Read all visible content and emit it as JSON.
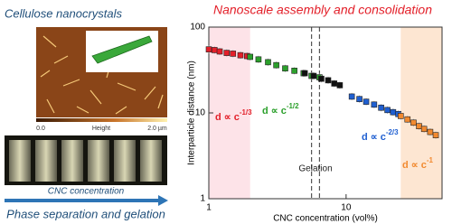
{
  "chart_data": {
    "type": "scatter",
    "title": "Nanoscale assembly and consolidation",
    "title_color": "#e3202a",
    "x_label": "CNC concentration (vol%)",
    "y_label": "Interparticle distance (nm)",
    "xscale": "log",
    "yscale": "log",
    "xlim": [
      1,
      50
    ],
    "ylim": [
      1,
      100
    ],
    "xticks": [
      1,
      10
    ],
    "yticks": [
      1,
      10,
      100
    ],
    "shaded_regions": [
      {
        "range": [
          1,
          2
        ],
        "color": "#fde3e8"
      },
      {
        "range": [
          25,
          50
        ],
        "color": "#fde6d2"
      }
    ],
    "vlines": [
      5.6,
      6.4
    ],
    "vline_label": "Gelation",
    "series": [
      {
        "color": "#e3202a",
        "x": [
          1,
          1.1,
          1.2,
          1.35,
          1.5,
          1.7,
          1.9
        ],
        "values": [
          55,
          54,
          52,
          50,
          49,
          47,
          46
        ]
      },
      {
        "color": "#2ca02c",
        "x": [
          2,
          2.3,
          2.7,
          3.1,
          3.6,
          4.2,
          4.9,
          5.6,
          6.4
        ],
        "values": [
          45,
          42,
          39,
          36,
          33,
          31,
          29,
          27,
          26
        ]
      },
      {
        "color": "#111111",
        "x": [
          5,
          5.8,
          6.6,
          7.4,
          8.2,
          9
        ],
        "values": [
          29,
          27,
          25,
          24,
          22,
          21
        ]
      },
      {
        "color": "#1f5fd1",
        "x": [
          11,
          12.5,
          14,
          16,
          18,
          20,
          22,
          24
        ],
        "values": [
          15.5,
          14.5,
          13.5,
          12.5,
          11.5,
          10.8,
          10.2,
          9.7
        ]
      },
      {
        "color": "#f28a30",
        "x": [
          25,
          28,
          31,
          34,
          37,
          41,
          45
        ],
        "values": [
          9.2,
          8.4,
          7.7,
          7,
          6.5,
          6,
          5.5
        ]
      }
    ],
    "annotations": [
      {
        "text": "d ∝ c",
        "exponent": "-1/3",
        "color": "#e3202a"
      },
      {
        "text": "d ∝ c",
        "exponent": "-1/2",
        "color": "#2ca02c"
      },
      {
        "text": "d ∝ c",
        "exponent": "-2/3",
        "color": "#1f5fd1"
      },
      {
        "text": "d ∝ c",
        "exponent": "-1",
        "color": "#f28a30"
      }
    ]
  },
  "left_panel": {
    "heading": "Cellulose nanocrystals",
    "afm_labels": [
      "0.0",
      "Height",
      "2.0 µm"
    ],
    "arrow_label": "CNC concentration",
    "caption": "Phase separation and gelation"
  }
}
